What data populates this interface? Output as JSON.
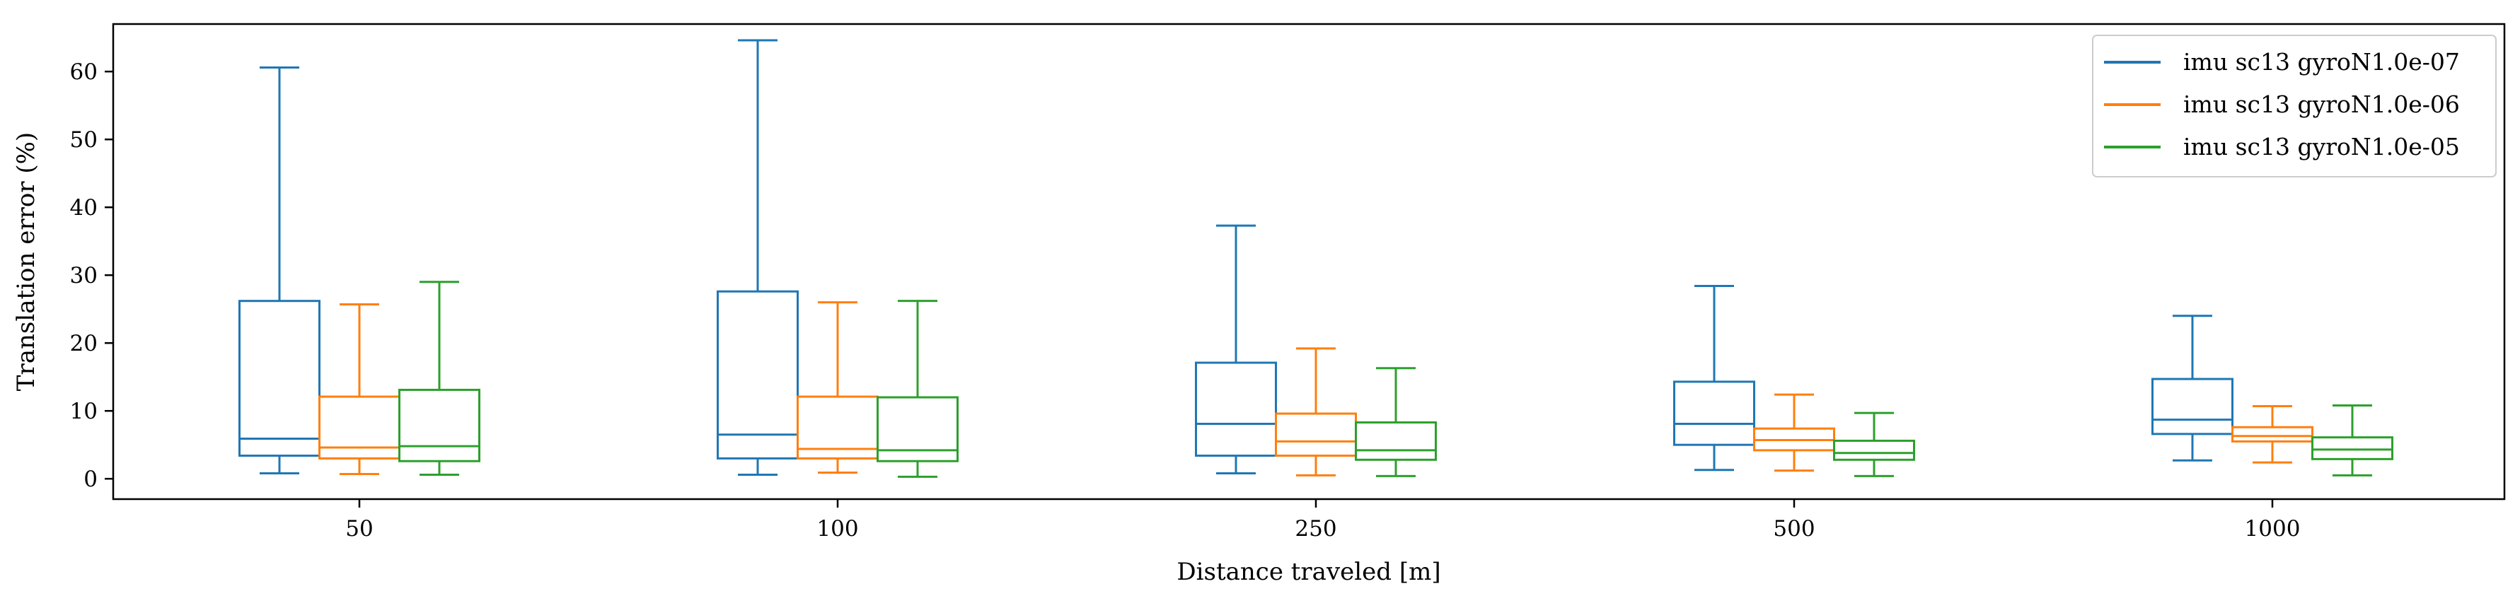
{
  "chart_data": {
    "type": "box",
    "title": "",
    "xlabel": "Distance traveled [m]",
    "ylabel": "Translation error (%)",
    "categories": [
      "50",
      "100",
      "250",
      "500",
      "1000"
    ],
    "ylim": [
      -3,
      67
    ],
    "yticks": [
      0,
      10,
      20,
      30,
      40,
      50,
      60
    ],
    "grid": false,
    "legend_position": "top-right",
    "series": [
      {
        "name": "imu sc13 gyroN1.0e-07",
        "color": "#1f77b4",
        "boxes": [
          {
            "whislo": 0.8,
            "q1": 3.4,
            "med": 5.9,
            "q3": 26.2,
            "whishi": 60.6
          },
          {
            "whislo": 0.6,
            "q1": 3.0,
            "med": 6.5,
            "q3": 27.6,
            "whishi": 64.6
          },
          {
            "whislo": 0.8,
            "q1": 3.4,
            "med": 8.1,
            "q3": 17.1,
            "whishi": 37.3
          },
          {
            "whislo": 1.3,
            "q1": 5.0,
            "med": 8.1,
            "q3": 14.3,
            "whishi": 28.4
          },
          {
            "whislo": 2.7,
            "q1": 6.6,
            "med": 8.7,
            "q3": 14.7,
            "whishi": 24.0
          }
        ]
      },
      {
        "name": "imu sc13 gyroN1.0e-06",
        "color": "#ff7f0e",
        "boxes": [
          {
            "whislo": 0.7,
            "q1": 3.0,
            "med": 4.6,
            "q3": 12.1,
            "whishi": 25.7
          },
          {
            "whislo": 0.9,
            "q1": 3.0,
            "med": 4.4,
            "q3": 12.1,
            "whishi": 26.0
          },
          {
            "whislo": 0.5,
            "q1": 3.4,
            "med": 5.5,
            "q3": 9.6,
            "whishi": 19.2
          },
          {
            "whislo": 1.2,
            "q1": 4.2,
            "med": 5.7,
            "q3": 7.4,
            "whishi": 12.4
          },
          {
            "whislo": 2.4,
            "q1": 5.5,
            "med": 6.3,
            "q3": 7.6,
            "whishi": 10.7
          }
        ]
      },
      {
        "name": "imu sc13 gyroN1.0e-05",
        "color": "#2ca02c",
        "boxes": [
          {
            "whislo": 0.6,
            "q1": 2.6,
            "med": 4.8,
            "q3": 13.1,
            "whishi": 29.0
          },
          {
            "whislo": 0.3,
            "q1": 2.6,
            "med": 4.2,
            "q3": 12.0,
            "whishi": 26.2
          },
          {
            "whislo": 0.4,
            "q1": 2.8,
            "med": 4.2,
            "q3": 8.3,
            "whishi": 16.3
          },
          {
            "whislo": 0.4,
            "q1": 2.8,
            "med": 3.8,
            "q3": 5.6,
            "whishi": 9.7
          },
          {
            "whislo": 0.5,
            "q1": 2.9,
            "med": 4.3,
            "q3": 6.1,
            "whishi": 10.8
          }
        ]
      }
    ]
  }
}
